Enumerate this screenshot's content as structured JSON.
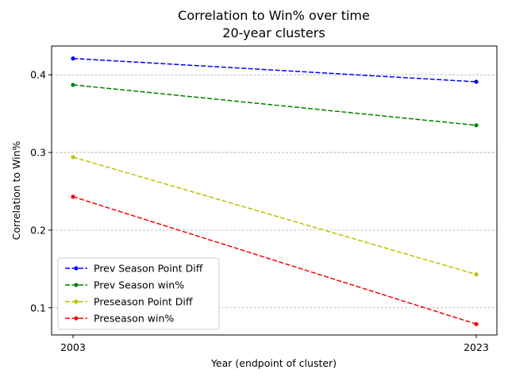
{
  "chart_data": {
    "type": "line",
    "title": "Correlation to Win% over time",
    "subtitle": "20-year clusters",
    "xlabel": "Year (endpoint of cluster)",
    "ylabel": "Correlation to Win%",
    "x": [
      "2003",
      "2023"
    ],
    "x_ticks": [
      "2003",
      "2023"
    ],
    "y_ticks": [
      "0.1",
      "0.2",
      "0.3",
      "0.4"
    ],
    "ylim": [
      0.065,
      0.437
    ],
    "grid": "horizontal dashed",
    "legend_position": "lower-left",
    "series": [
      {
        "name": "Prev Season Point Diff",
        "color": "#0000ff",
        "values": [
          0.421,
          0.391
        ]
      },
      {
        "name": "Prev Season win%",
        "color": "#008000",
        "values": [
          0.387,
          0.335
        ]
      },
      {
        "name": "Preseason Point Diff",
        "color": "#bfbf00",
        "values": [
          0.294,
          0.143
        ]
      },
      {
        "name": "Preseason win%",
        "color": "#ff0000",
        "values": [
          0.243,
          0.079
        ]
      }
    ]
  }
}
